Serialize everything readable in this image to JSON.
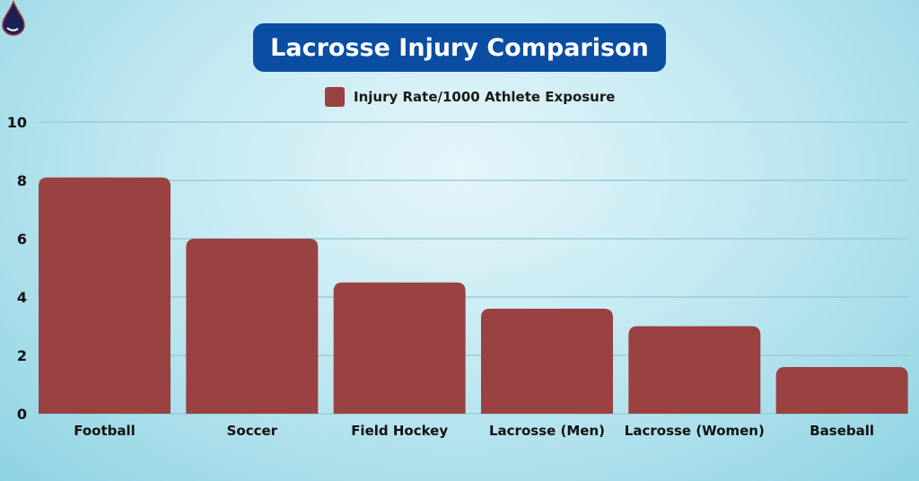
{
  "chart_data": {
    "type": "bar",
    "title": "Lacrosse Injury Comparison",
    "categories": [
      "Football",
      "Soccer",
      "Field Hockey",
      "Lacrosse (Men)",
      "Lacrosse (Women)",
      "Baseball"
    ],
    "series": [
      {
        "name": "Injury Rate/1000 Athlete Exposure",
        "values": [
          8.1,
          6.0,
          4.5,
          3.6,
          3.0,
          1.6
        ],
        "color": "#9a4141"
      }
    ],
    "ylim": [
      0,
      10
    ],
    "yticks": [
      0,
      2,
      4,
      6,
      8,
      10
    ],
    "grid": true,
    "legend": "top-center",
    "xlabel": "",
    "ylabel": ""
  },
  "colors": {
    "title_bg": "#0a4ea3",
    "grid": "#9ccbd6"
  }
}
